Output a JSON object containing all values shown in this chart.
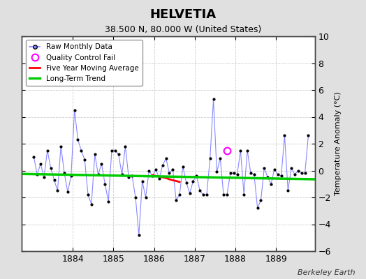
{
  "title": "HELVETIA",
  "subtitle": "38.500 N, 80.000 W (United States)",
  "ylabel": "Temperature Anomaly (°C)",
  "watermark": "Berkeley Earth",
  "bg_color": "#e0e0e0",
  "plot_bg_color": "#ffffff",
  "ylim": [
    -6,
    10
  ],
  "yticks": [
    -6,
    -4,
    -2,
    0,
    2,
    4,
    6,
    8,
    10
  ],
  "xlim_start": 1882.75,
  "xlim_end": 1889.95,
  "xticks": [
    1884,
    1885,
    1886,
    1887,
    1888,
    1889
  ],
  "raw_x": [
    1883.042,
    1883.125,
    1883.208,
    1883.292,
    1883.375,
    1883.458,
    1883.542,
    1883.625,
    1883.708,
    1883.792,
    1883.875,
    1883.958,
    1884.042,
    1884.125,
    1884.208,
    1884.292,
    1884.375,
    1884.458,
    1884.542,
    1884.625,
    1884.708,
    1884.792,
    1884.875,
    1884.958,
    1885.042,
    1885.125,
    1885.208,
    1885.292,
    1885.375,
    1885.458,
    1885.542,
    1885.625,
    1885.708,
    1885.792,
    1885.875,
    1885.958,
    1886.042,
    1886.125,
    1886.208,
    1886.292,
    1886.375,
    1886.458,
    1886.542,
    1886.625,
    1886.708,
    1886.792,
    1886.875,
    1886.958,
    1887.042,
    1887.125,
    1887.208,
    1887.292,
    1887.375,
    1887.458,
    1887.542,
    1887.625,
    1887.708,
    1887.792,
    1887.875,
    1887.958,
    1888.042,
    1888.125,
    1888.208,
    1888.292,
    1888.375,
    1888.458,
    1888.542,
    1888.625,
    1888.708,
    1888.792,
    1888.875,
    1888.958,
    1889.042,
    1889.125,
    1889.208,
    1889.292,
    1889.375,
    1889.458,
    1889.542,
    1889.625,
    1889.708,
    1889.792
  ],
  "raw_y": [
    1.0,
    -0.3,
    0.5,
    -0.5,
    1.5,
    0.2,
    -0.7,
    -1.5,
    1.8,
    -0.2,
    -1.6,
    -0.4,
    4.5,
    2.3,
    1.5,
    0.8,
    -1.8,
    -2.5,
    1.2,
    -0.3,
    0.5,
    -1.0,
    -2.3,
    1.5,
    1.5,
    1.2,
    -0.3,
    1.8,
    -0.5,
    -0.4,
    -2.0,
    -4.8,
    -0.8,
    -2.0,
    0.0,
    -0.4,
    0.1,
    -0.6,
    0.4,
    0.9,
    -0.2,
    0.1,
    -2.2,
    -1.8,
    0.3,
    -0.9,
    -1.7,
    -0.8,
    -0.4,
    -1.5,
    -1.8,
    -1.8,
    0.9,
    5.3,
    -0.1,
    0.9,
    -1.8,
    -1.8,
    -0.2,
    -0.2,
    -0.3,
    1.5,
    -1.8,
    1.5,
    -0.2,
    -0.3,
    -2.8,
    -2.2,
    0.2,
    -0.5,
    -1.0,
    0.1,
    -0.3,
    -0.4,
    2.6,
    -1.5,
    0.2,
    -0.3,
    0.0,
    -0.2,
    -0.2,
    2.6
  ],
  "qc_fail_x": [
    1887.792
  ],
  "qc_fail_y": [
    1.5
  ],
  "moving_avg_x": [
    1885.958,
    1886.042,
    1886.125,
    1886.208,
    1886.292,
    1886.375,
    1886.458,
    1886.542,
    1886.625
  ],
  "moving_avg_y": [
    -0.35,
    -0.4,
    -0.45,
    -0.5,
    -0.55,
    -0.65,
    -0.72,
    -0.78,
    -0.85
  ],
  "trend_x": [
    1882.75,
    1889.95
  ],
  "trend_y": [
    -0.25,
    -0.65
  ],
  "raw_line_color": "#8888ff",
  "dot_color": "#000000",
  "qc_color": "#ff00ff",
  "moving_avg_color": "#ff0000",
  "trend_color": "#00cc00",
  "grid_color": "#cccccc"
}
